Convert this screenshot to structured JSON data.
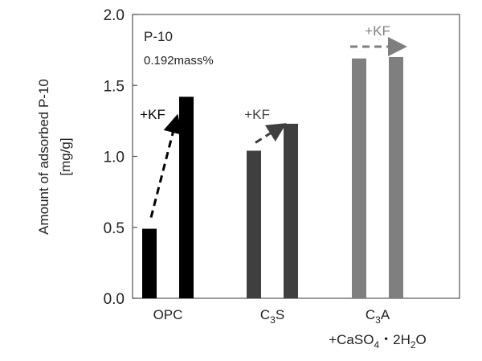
{
  "chart_data": {
    "type": "bar",
    "title": "",
    "annotation_title": "P-10",
    "annotation_subtitle": "0.192mass%",
    "ylabel_line1": "Amount of adsorbed P-10",
    "ylabel_line2": "[mg/g]",
    "xlabel": "",
    "ylim": [
      0,
      2.0
    ],
    "yticks": [
      0.0,
      0.5,
      1.0,
      1.5,
      2.0
    ],
    "ytick_labels": [
      "0.0",
      "0.5",
      "1.0",
      "1.5",
      "2.0"
    ],
    "grid": false,
    "legend": "none",
    "categories": [
      {
        "label_parts": [
          [
            "C",
            "",
            ""
          ],
          [
            "3",
            "sub",
            ""
          ],
          [
            "S",
            "",
            ""
          ]
        ],
        "label_text": "C3S",
        "values": [
          1.04,
          1.23
        ],
        "color": "#3f3f3f"
      }
    ],
    "arrow_label": "+KF",
    "colors": {
      "opc": "#000000",
      "c3s": "#3f3f3f",
      "c3a": "#7f7f7f"
    }
  },
  "categories_all": [
    {
      "label_text": "OPC",
      "label_parts_line1": [
        [
          "OPC",
          ""
        ]
      ],
      "label_parts_line2": [],
      "values": [
        0.49,
        1.42
      ],
      "color": "#000000"
    },
    {
      "label_text": "C3S",
      "label_parts_line1": [
        [
          "C",
          ""
        ],
        [
          "3",
          "sub"
        ],
        [
          "S",
          ""
        ]
      ],
      "label_parts_line2": [],
      "values": [
        1.04,
        1.23
      ],
      "color": "#3f3f3f"
    },
    {
      "label_text": "C3A +CaSO4・2H2O",
      "label_parts_line1": [
        [
          "C",
          ""
        ],
        [
          "3",
          "sub"
        ],
        [
          "A",
          ""
        ]
      ],
      "label_parts_line2": [
        [
          "+CaSO",
          ""
        ],
        [
          "4",
          "sub"
        ],
        [
          "・2H",
          ""
        ],
        [
          "2",
          "sub"
        ],
        [
          "O",
          ""
        ]
      ],
      "values": [
        1.69,
        1.7
      ],
      "color": "#7f7f7f"
    }
  ]
}
